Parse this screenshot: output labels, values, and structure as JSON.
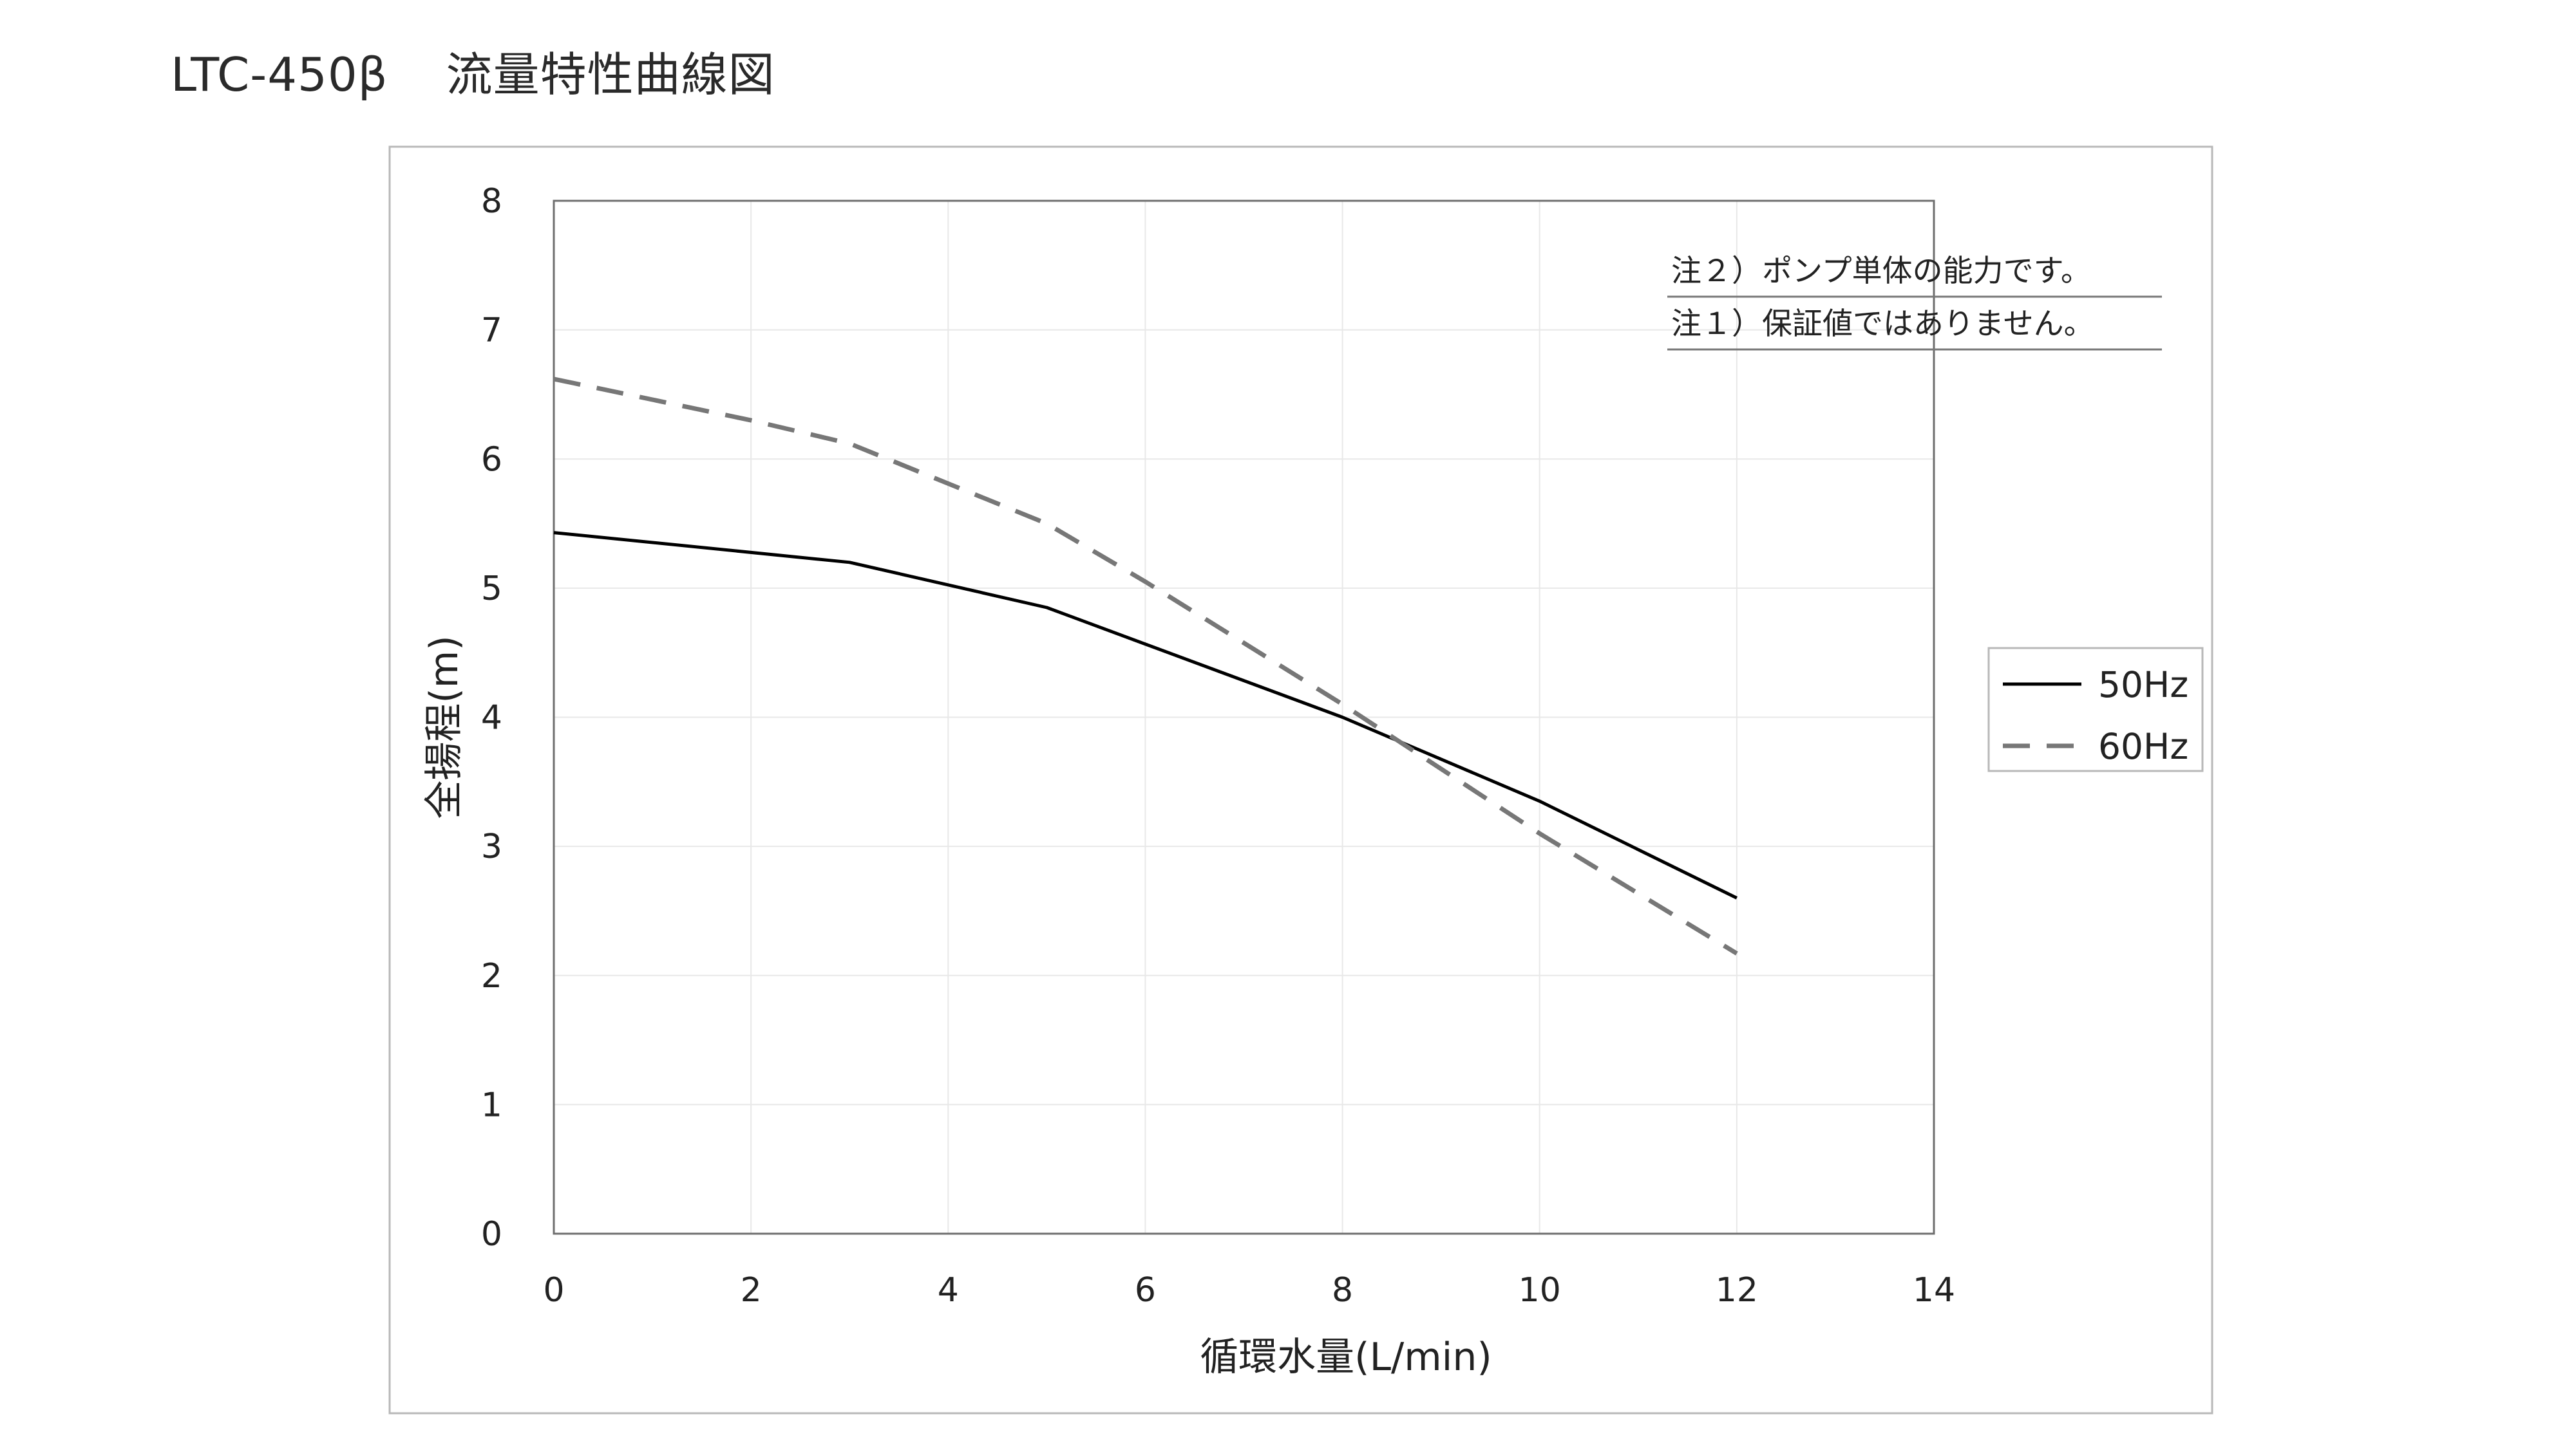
{
  "page": {
    "title_model": "LTC-450β",
    "title_text": "流量特性曲線図"
  },
  "chart_data": {
    "type": "line",
    "xlabel": "循環水量(L/min)",
    "ylabel": "全揚程(m)",
    "xlim": [
      0,
      14
    ],
    "ylim": [
      0,
      8
    ],
    "x_ticks": [
      0,
      2,
      4,
      6,
      8,
      10,
      12,
      14
    ],
    "y_ticks": [
      0,
      1,
      2,
      3,
      4,
      5,
      6,
      7,
      8
    ],
    "grid": true,
    "legend_position": "right",
    "annotations": [
      "注２）ポンプ単体の能力です。",
      "注１）保証値ではありません。"
    ],
    "series": [
      {
        "name": "50Hz",
        "style": "solid",
        "color": "#000000",
        "points": [
          [
            0,
            5.43
          ],
          [
            3,
            5.2
          ],
          [
            5,
            4.85
          ],
          [
            8,
            4.0
          ],
          [
            10,
            3.35
          ],
          [
            12,
            2.6
          ]
        ]
      },
      {
        "name": "60Hz",
        "style": "dashed",
        "color": "#777777",
        "points": [
          [
            0,
            6.62
          ],
          [
            2,
            6.3
          ],
          [
            3,
            6.12
          ],
          [
            5,
            5.5
          ],
          [
            6,
            5.05
          ],
          [
            8,
            4.1
          ],
          [
            10,
            3.1
          ],
          [
            12,
            2.17
          ]
        ]
      }
    ]
  }
}
